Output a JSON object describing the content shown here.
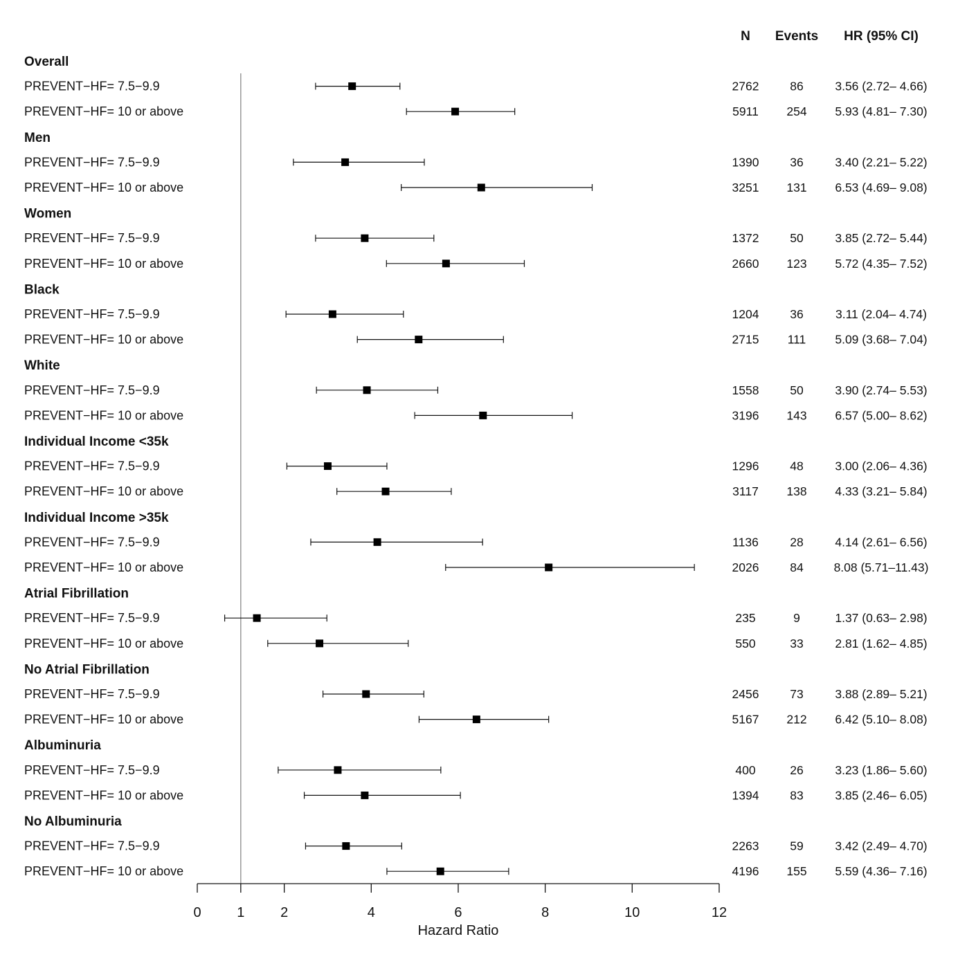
{
  "chart_data": {
    "type": "forest",
    "xlabel": "Hazard Ratio",
    "xlim": [
      0,
      12
    ],
    "x_ticks": [
      0,
      1,
      2,
      4,
      6,
      8,
      10,
      12
    ],
    "reference_line": 1,
    "columns": {
      "n": "N",
      "events": "Events",
      "hr": "HR (95% CI)"
    },
    "groups": [
      {
        "name": "Overall",
        "rows": [
          {
            "label": "PREVENT−HF= 7.5−9.9",
            "hr": 3.56,
            "lo": 2.72,
            "hi": 4.66,
            "n": "2762",
            "events": "86",
            "hr_text": "3.56 (2.72– 4.66)"
          },
          {
            "label": "PREVENT−HF= 10 or above",
            "hr": 5.93,
            "lo": 4.81,
            "hi": 7.3,
            "n": "5911",
            "events": "254",
            "hr_text": "5.93 (4.81– 7.30)"
          }
        ]
      },
      {
        "name": "Men",
        "rows": [
          {
            "label": "PREVENT−HF= 7.5−9.9",
            "hr": 3.4,
            "lo": 2.21,
            "hi": 5.22,
            "n": "1390",
            "events": "36",
            "hr_text": "3.40 (2.21– 5.22)"
          },
          {
            "label": "PREVENT−HF= 10 or above",
            "hr": 6.53,
            "lo": 4.69,
            "hi": 9.08,
            "n": "3251",
            "events": "131",
            "hr_text": "6.53 (4.69– 9.08)"
          }
        ]
      },
      {
        "name": "Women",
        "rows": [
          {
            "label": "PREVENT−HF= 7.5−9.9",
            "hr": 3.85,
            "lo": 2.72,
            "hi": 5.44,
            "n": "1372",
            "events": "50",
            "hr_text": "3.85 (2.72– 5.44)"
          },
          {
            "label": "PREVENT−HF= 10 or above",
            "hr": 5.72,
            "lo": 4.35,
            "hi": 7.52,
            "n": "2660",
            "events": "123",
            "hr_text": "5.72 (4.35– 7.52)"
          }
        ]
      },
      {
        "name": "Black",
        "rows": [
          {
            "label": "PREVENT−HF= 7.5−9.9",
            "hr": 3.11,
            "lo": 2.04,
            "hi": 4.74,
            "n": "1204",
            "events": "36",
            "hr_text": "3.11 (2.04– 4.74)"
          },
          {
            "label": "PREVENT−HF= 10 or above",
            "hr": 5.09,
            "lo": 3.68,
            "hi": 7.04,
            "n": "2715",
            "events": "111",
            "hr_text": "5.09 (3.68– 7.04)"
          }
        ]
      },
      {
        "name": "White",
        "rows": [
          {
            "label": "PREVENT−HF= 7.5−9.9",
            "hr": 3.9,
            "lo": 2.74,
            "hi": 5.53,
            "n": "1558",
            "events": "50",
            "hr_text": "3.90 (2.74– 5.53)"
          },
          {
            "label": "PREVENT−HF= 10 or above",
            "hr": 6.57,
            "lo": 5.0,
            "hi": 8.62,
            "n": "3196",
            "events": "143",
            "hr_text": "6.57 (5.00– 8.62)"
          }
        ]
      },
      {
        "name": "Individual Income <35k",
        "rows": [
          {
            "label": "PREVENT−HF= 7.5−9.9",
            "hr": 3.0,
            "lo": 2.06,
            "hi": 4.36,
            "n": "1296",
            "events": "48",
            "hr_text": "3.00 (2.06– 4.36)"
          },
          {
            "label": "PREVENT−HF= 10 or above",
            "hr": 4.33,
            "lo": 3.21,
            "hi": 5.84,
            "n": "3117",
            "events": "138",
            "hr_text": "4.33 (3.21– 5.84)"
          }
        ]
      },
      {
        "name": "Individual Income >35k",
        "rows": [
          {
            "label": "PREVENT−HF= 7.5−9.9",
            "hr": 4.14,
            "lo": 2.61,
            "hi": 6.56,
            "n": "1136",
            "events": "28",
            "hr_text": "4.14 (2.61– 6.56)"
          },
          {
            "label": "PREVENT−HF= 10 or above",
            "hr": 8.08,
            "lo": 5.71,
            "hi": 11.43,
            "n": "2026",
            "events": "84",
            "hr_text": "8.08 (5.71–11.43)"
          }
        ]
      },
      {
        "name": "Atrial Fibrillation",
        "rows": [
          {
            "label": "PREVENT−HF= 7.5−9.9",
            "hr": 1.37,
            "lo": 0.63,
            "hi": 2.98,
            "n": "235",
            "events": "9",
            "hr_text": "1.37 (0.63– 2.98)"
          },
          {
            "label": "PREVENT−HF= 10 or above",
            "hr": 2.81,
            "lo": 1.62,
            "hi": 4.85,
            "n": "550",
            "events": "33",
            "hr_text": "2.81 (1.62– 4.85)"
          }
        ]
      },
      {
        "name": "No Atrial Fibrillation",
        "rows": [
          {
            "label": "PREVENT−HF= 7.5−9.9",
            "hr": 3.88,
            "lo": 2.89,
            "hi": 5.21,
            "n": "2456",
            "events": "73",
            "hr_text": "3.88 (2.89– 5.21)"
          },
          {
            "label": "PREVENT−HF= 10 or above",
            "hr": 6.42,
            "lo": 5.1,
            "hi": 8.08,
            "n": "5167",
            "events": "212",
            "hr_text": "6.42 (5.10– 8.08)"
          }
        ]
      },
      {
        "name": "Albuminuria",
        "rows": [
          {
            "label": "PREVENT−HF= 7.5−9.9",
            "hr": 3.23,
            "lo": 1.86,
            "hi": 5.6,
            "n": "400",
            "events": "26",
            "hr_text": "3.23 (1.86– 5.60)"
          },
          {
            "label": "PREVENT−HF= 10 or above",
            "hr": 3.85,
            "lo": 2.46,
            "hi": 6.05,
            "n": "1394",
            "events": "83",
            "hr_text": "3.85 (2.46– 6.05)"
          }
        ]
      },
      {
        "name": "No Albuminuria",
        "rows": [
          {
            "label": "PREVENT−HF= 7.5−9.9",
            "hr": 3.42,
            "lo": 2.49,
            "hi": 4.7,
            "n": "2263",
            "events": "59",
            "hr_text": "3.42 (2.49– 4.70)"
          },
          {
            "label": "PREVENT−HF= 10 or above",
            "hr": 5.59,
            "lo": 4.36,
            "hi": 7.16,
            "n": "4196",
            "events": "155",
            "hr_text": "5.59 (4.36– 7.16)"
          }
        ]
      }
    ]
  }
}
